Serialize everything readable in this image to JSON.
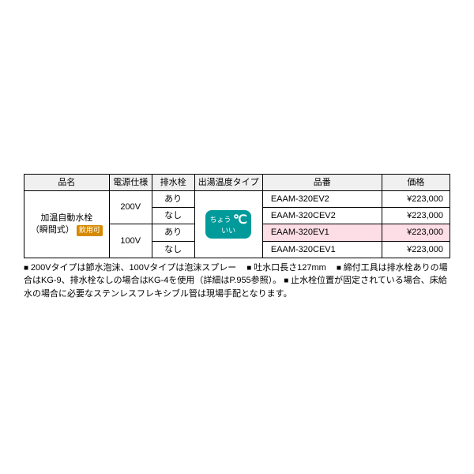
{
  "table": {
    "headers": {
      "name": "品名",
      "power": "電源仕様",
      "drain": "排水栓",
      "temp": "出湯温度タイプ",
      "part": "品番",
      "price": "価格"
    },
    "name_cell": {
      "line1": "加温自動水栓",
      "line2": "（瞬間式）",
      "badge": "飲用可"
    },
    "power": {
      "v200": "200V",
      "v100": "100V"
    },
    "drain": {
      "ari": "あり",
      "nashi": "なし"
    },
    "temp_badge": {
      "line1": "ちょう",
      "line2": "いい",
      "c": "℃"
    },
    "rows": [
      {
        "part": "EAAM-320EV2",
        "price": "¥223,000",
        "highlight": false
      },
      {
        "part": "EAAM-320CEV2",
        "price": "¥223,000",
        "highlight": false
      },
      {
        "part": "EAAM-320EV1",
        "price": "¥223,000",
        "highlight": true
      },
      {
        "part": "EAAM-320CEV1",
        "price": "¥223,000",
        "highlight": false
      }
    ]
  },
  "notes": {
    "n1": "200Vタイプは節水泡沫、100Vタイプは泡沫スプレー",
    "n2": "吐水口長さ127mm",
    "n3": "締付工具は排水栓ありの場合はKG-9、排水栓なしの場合はKG-4を使用（詳細はP.955参照）。",
    "n4": "止水栓位置が固定されている場合、床給水の場合に必要なステンレスフレキシブル管は現場手配となります。"
  },
  "colors": {
    "highlight_bg": "#fddde6",
    "drink_badge_bg": "#d68a00",
    "temp_badge_bg": "#009a9a",
    "border": "#000000",
    "header_bg": "#f0f0f0"
  }
}
